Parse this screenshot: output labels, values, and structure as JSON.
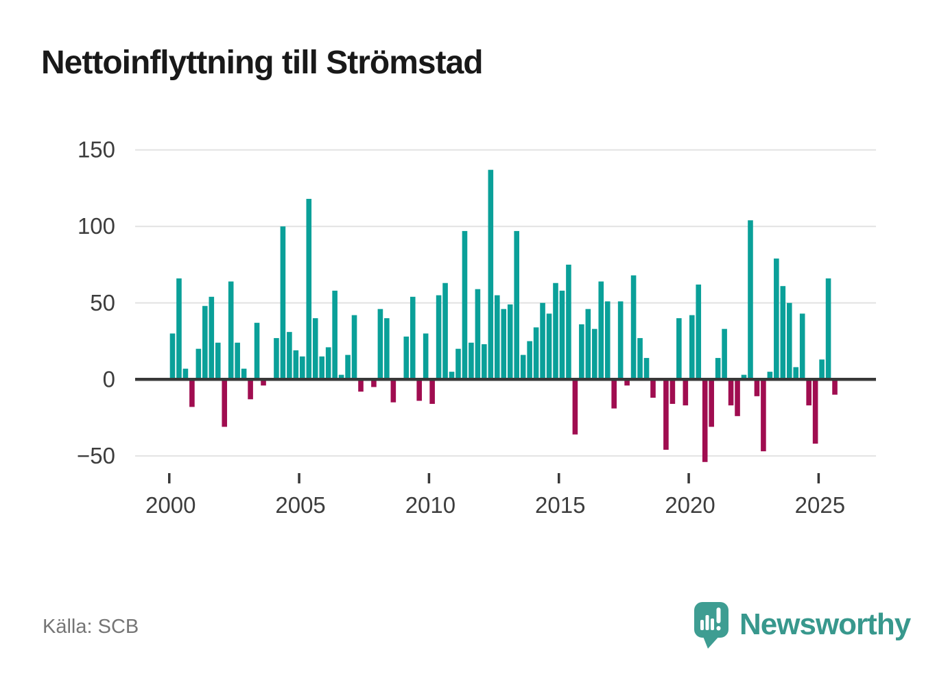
{
  "title": "Nettoinflyttning till Strömstad",
  "source": "Källa: SCB",
  "branding": {
    "name": "Newsworthy",
    "logo_color": "#38988d"
  },
  "chart_data": {
    "type": "bar",
    "title": "Nettoinflyttning till Strömstad",
    "frequency": "quarterly",
    "start_year": 2000,
    "start_quarter": 1,
    "end_year": 2025,
    "end_quarter": 3,
    "values": [
      30,
      66,
      7,
      -18,
      20,
      48,
      54,
      24,
      -31,
      64,
      24,
      7,
      -13,
      37,
      -4,
      0,
      27,
      100,
      31,
      19,
      15,
      118,
      40,
      15,
      21,
      58,
      3,
      16,
      42,
      -8,
      0,
      -5,
      46,
      40,
      -15,
      0,
      28,
      54,
      -14,
      30,
      -16,
      55,
      63,
      5,
      20,
      97,
      24,
      59,
      23,
      137,
      55,
      46,
      49,
      97,
      16,
      25,
      34,
      50,
      43,
      63,
      58,
      75,
      -36,
      36,
      46,
      33,
      64,
      51,
      -19,
      51,
      -4,
      68,
      27,
      14,
      -12,
      0,
      -46,
      -16,
      40,
      -17,
      42,
      62,
      -54,
      -31,
      14,
      33,
      -17,
      -24,
      3,
      104,
      -11,
      -47,
      5,
      79,
      61,
      50,
      8,
      43,
      -17,
      -42,
      13,
      66,
      -10
    ],
    "y_ticks": [
      {
        "value": 150,
        "label": "150"
      },
      {
        "value": 100,
        "label": "100"
      },
      {
        "value": 50,
        "label": "50"
      },
      {
        "value": 0,
        "label": "0"
      },
      {
        "value": -50,
        "label": "−50"
      }
    ],
    "x_ticks": [
      {
        "year": 2000,
        "label": "2000"
      },
      {
        "year": 2005,
        "label": "2005"
      },
      {
        "year": 2010,
        "label": "2010"
      },
      {
        "year": 2015,
        "label": "2015"
      },
      {
        "year": 2020,
        "label": "2020"
      },
      {
        "year": 2025,
        "label": "2025"
      }
    ],
    "ylim": [
      -60,
      155
    ],
    "grid": true,
    "legend": false,
    "colors": {
      "positive": "#0aa099",
      "negative": "#a00d50",
      "gridline": "#e2e2e2",
      "zero_axis": "#383838",
      "tick": "#383838"
    }
  }
}
